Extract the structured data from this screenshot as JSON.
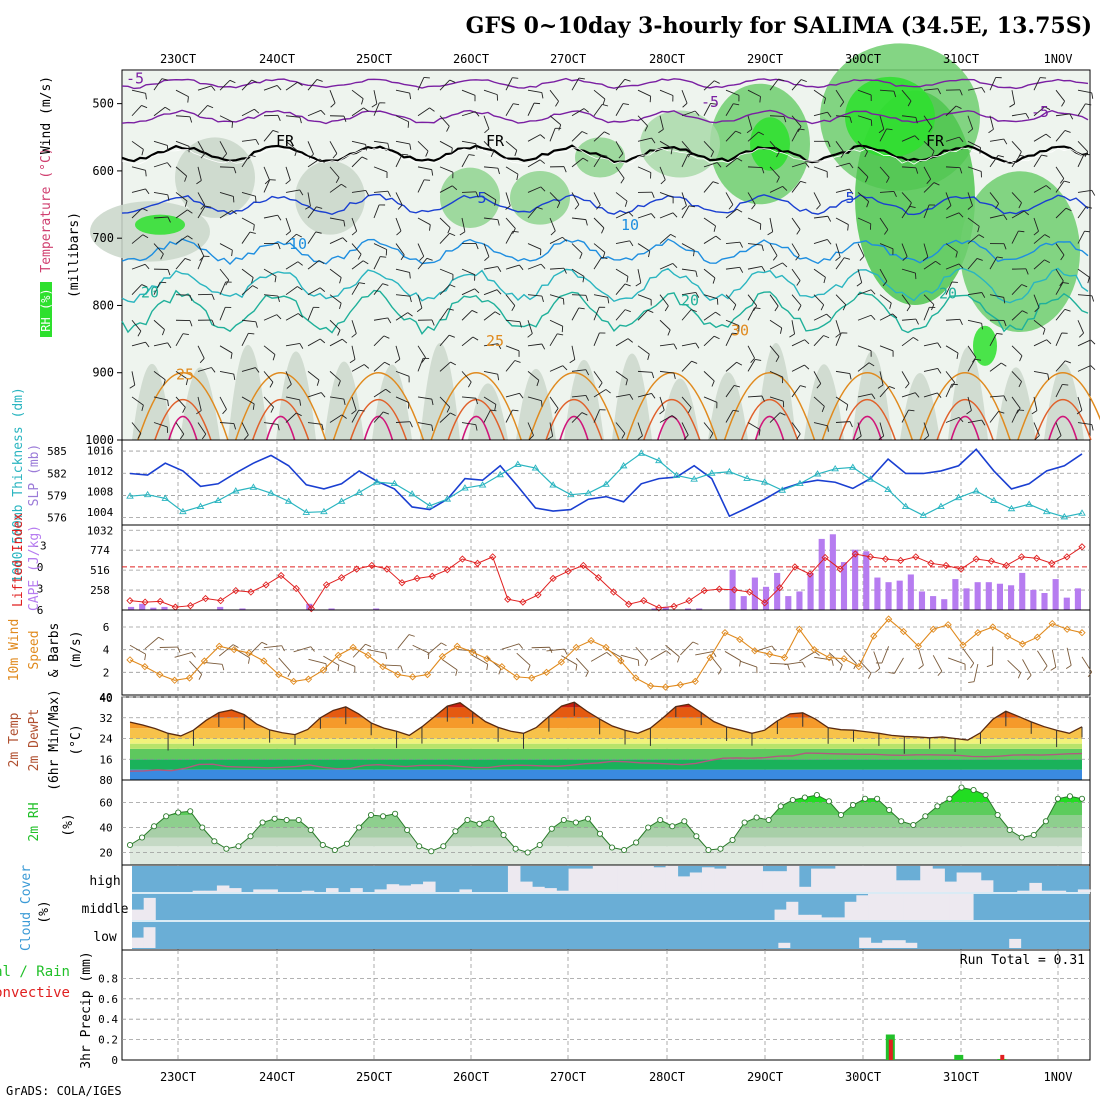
{
  "header": {
    "title": "GFS 0~10day 3-hourly for SALIMA (34.5E, 13.75S)",
    "credit": "GrADS: COLA/IGES"
  },
  "colors": {
    "purple": "#7a1fa2",
    "blue": "#1a3fd1",
    "cyan": "#2ab5c0",
    "orange": "#e08a1e",
    "red": "#e02020",
    "green": "#22c02a",
    "cloudBlue": "#6aaed6",
    "cape": "#b67cf0",
    "barb": "#7a5a3a"
  },
  "chart_data": [
    {
      "id": "upper-air",
      "type": "heatmap",
      "ylabel_parts": [
        "RH (%)",
        "Temperature (°C)",
        "Wind (m/s)"
      ],
      "ylabel_sub": "(millibars)",
      "y_ticks": [
        500,
        600,
        700,
        800,
        900,
        1000
      ],
      "ylim": [
        1000,
        450
      ],
      "x_ticks": [
        "23OCT",
        "24OCT",
        "25OCT",
        "26OCT",
        "27OCT",
        "28OCT",
        "29OCT",
        "30OCT",
        "31OCT",
        "1NOV"
      ],
      "contour_labels": [
        "-5",
        "-5",
        "-5",
        "FR",
        "FR",
        "FR",
        "5",
        "5",
        "10",
        "10",
        "20",
        "20",
        "20",
        "25",
        "25",
        "30"
      ]
    },
    {
      "id": "slp-thickness",
      "type": "line",
      "ylabel_left": "1000-500mb Thickness (dm)",
      "ylabel_right": "SLP (mb)",
      "left_ticks": [
        576,
        579,
        582,
        585
      ],
      "right_ticks": [
        1004,
        1008,
        1012,
        1016
      ],
      "series": [
        {
          "name": "SLP (mb)",
          "values": [
            1011.5,
            1011.2,
            1013.5,
            1012,
            1009,
            1009.5,
            1011.6,
            1013.5,
            1015,
            1013,
            1009.3,
            1008.5,
            1009.5,
            1012,
            1010,
            1008.5,
            1005,
            1004.5,
            1006.5,
            1010.5,
            1010.2,
            1013,
            1009,
            1004.8,
            1004.2,
            1004.5,
            1006.5,
            1007,
            1006,
            1009.5,
            1010.5,
            1010.8,
            1013,
            1010.5,
            1003.2,
            1004.8,
            1006.5,
            1008.5,
            1009.6,
            1010.2,
            1009.8,
            1008.6,
            1010.5,
            1014.3,
            1011.5,
            1011.5,
            1012,
            1013,
            1016.2,
            1012,
            1008.5,
            1009.5,
            1012,
            1013,
            1015.3
          ]
        },
        {
          "name": "Thickness (dm)",
          "values": [
            578.9,
            579.1,
            578.6,
            576.8,
            577.5,
            578.3,
            579.6,
            580.1,
            579.3,
            578.2,
            576.7,
            576.8,
            578.2,
            579.4,
            580.8,
            580.6,
            579.2,
            577.6,
            578.5,
            580,
            580.4,
            581.8,
            583.2,
            582.7,
            580.4,
            579.1,
            579.3,
            580.5,
            583,
            584.7,
            583.7,
            581.7,
            581.2,
            582,
            582.2,
            581.3,
            580.8,
            579.7,
            580.6,
            581.9,
            582.6,
            582.8,
            581.2,
            579.8,
            577.5,
            576.3,
            577.5,
            578.7,
            579.6,
            578.3,
            577.2,
            577.8,
            576.8,
            576.1,
            576.6
          ]
        }
      ]
    },
    {
      "id": "cape-li",
      "type": "bar",
      "ylabel_left": "Lifted Index",
      "ylabel_right": "CAPE (J/kg)",
      "left_ticks": [
        "-3",
        "0",
        "3",
        "6"
      ],
      "right_ticks": [
        258,
        516,
        774,
        1032
      ],
      "series": [
        {
          "name": "Lifted Index",
          "values": [
            4.7,
            4.9,
            4.8,
            5.6,
            5.4,
            4.4,
            4.7,
            3.3,
            3.5,
            2.5,
            1.2,
            3,
            5.8,
            2.5,
            1.5,
            0.3,
            -0.2,
            0.3,
            2.2,
            1.6,
            1.3,
            0.4,
            -1.1,
            -0.5,
            -1.4,
            4.5,
            4.9,
            3.9,
            1.6,
            0.6,
            -0.2,
            1.5,
            3.5,
            5.2,
            4.7,
            5.7,
            5.5,
            4.7,
            3.3,
            3.1,
            3.2,
            3.5,
            5,
            2.9,
            0,
            1,
            -1.3,
            0.3,
            -1.8,
            -1.4,
            -1.1,
            -0.9,
            -1.4,
            -0.5,
            -0.2,
            0.3,
            -1.1,
            -0.8,
            -0.2,
            -1.4,
            -1.2,
            -0.5,
            -1.4,
            -2.8
          ]
        },
        {
          "name": "CAPE (J/kg)",
          "values": [
            40,
            80,
            30,
            40,
            0,
            0,
            0,
            0,
            40,
            0,
            20,
            0,
            0,
            0,
            0,
            0,
            80,
            0,
            20,
            0,
            0,
            0,
            20,
            0,
            0,
            0,
            0,
            0,
            0,
            0,
            0,
            0,
            0,
            0,
            0,
            0,
            0,
            0,
            0,
            0,
            0,
            0,
            0,
            0,
            0,
            0,
            0,
            20,
            40,
            0,
            20,
            20,
            0,
            0,
            520,
            180,
            420,
            300,
            480,
            180,
            240,
            480,
            920,
            980,
            620,
            780,
            760,
            420,
            360,
            380,
            460,
            240,
            180,
            140,
            400,
            280,
            360,
            360,
            340,
            320,
            480,
            260,
            220,
            400,
            160,
            280
          ]
        }
      ]
    },
    {
      "id": "wind10m",
      "type": "line",
      "ylabel_parts": [
        "10m Wind",
        "Speed",
        "& Barbs",
        "(m/s)"
      ],
      "y_ticks": [
        2,
        4,
        6
      ],
      "ylim": [
        0,
        7.5
      ],
      "series": [
        {
          "name": "10m Wind Speed",
          "values": [
            3.1,
            2.5,
            1.8,
            1.3,
            1.5,
            3,
            4.3,
            4,
            3.7,
            3,
            1.8,
            1.2,
            1.4,
            2.2,
            3.5,
            4.2,
            3.5,
            2.5,
            1.8,
            1.6,
            1.8,
            3.4,
            4.3,
            3.8,
            3.2,
            2.5,
            1.6,
            1.5,
            2,
            2.9,
            4.2,
            4.8,
            4.2,
            3,
            1.5,
            0.8,
            0.7,
            0.9,
            1.2,
            3.3,
            5.5,
            4.9,
            3.9,
            3.6,
            3.3,
            5.8,
            4,
            3.3,
            3.2,
            2.5,
            5.2,
            6.7,
            5.6,
            4.3,
            5.8,
            6.2,
            4.4,
            5.5,
            6,
            5.2,
            4.5,
            5.1,
            6.3,
            5.8,
            5.5
          ]
        }
      ]
    },
    {
      "id": "temp-dewpt",
      "type": "area",
      "ylabel_parts": [
        "2m Temp",
        "2m DewPt",
        "(6hr Min/Max)",
        "(°C)"
      ],
      "y_ticks": [
        16,
        24,
        32,
        40
      ],
      "ylim": [
        8,
        40
      ],
      "series": [
        {
          "name": "2m Temp",
          "values": [
            30.3,
            29.2,
            27.8,
            26,
            25,
            27.2,
            31,
            34,
            35,
            33.2,
            29.5,
            27.3,
            26.2,
            25.5,
            27.5,
            32,
            34.8,
            36.2,
            33.5,
            30,
            28,
            26.8,
            25.2,
            28.5,
            32.5,
            36.5,
            37.8,
            34.2,
            30.5,
            28.3,
            26.8,
            26,
            28.2,
            32.5,
            36.5,
            38,
            34.5,
            31.5,
            28.8,
            27.2,
            26,
            28,
            32,
            36.3,
            37.2,
            34,
            30.5,
            28.5,
            27.3,
            26,
            27.2,
            30.8,
            33.5,
            33.9,
            31.5,
            28.2,
            27.4,
            27.2,
            26.6,
            26,
            25.2,
            24.8,
            24.6,
            24.3,
            24.6,
            24,
            23.4,
            26.2,
            31.5,
            34.5,
            32.5,
            30.4,
            28.6,
            27.2,
            26,
            28.5
          ]
        },
        {
          "name": "2m DewPt",
          "values": [
            11.4,
            11.5,
            11.9,
            11.6,
            12.5,
            14,
            14.1,
            13.2,
            13,
            12.9,
            12.7,
            12.9,
            13.2,
            13.8,
            12.9,
            12.3,
            12.5,
            13.6,
            13.9,
            13.5,
            13.2,
            13.6,
            13.6,
            13.6,
            13.2,
            12.8,
            12.8,
            13.5,
            13.7,
            13.6,
            13.4,
            13.3,
            13.7,
            14.3,
            14.6,
            15.2,
            15,
            14.6,
            14.5,
            14.2,
            13.9,
            14.4,
            15.5,
            16.4,
            16.5,
            16.4,
            16.6,
            17.2,
            17.3,
            18.4,
            18.3,
            18.1,
            18,
            17.9,
            17.9,
            17.6,
            17.5,
            17.7,
            17.7,
            17.6,
            17.5,
            17.1,
            17,
            17.2,
            17.6,
            17.7,
            17.6,
            17.8,
            18.1,
            18.2
          ]
        }
      ]
    },
    {
      "id": "rh2m",
      "type": "area",
      "ylabel_parts": [
        "2m RH",
        "(%)"
      ],
      "y_ticks": [
        20,
        40,
        60
      ],
      "ylim": [
        10,
        78
      ],
      "series": [
        {
          "name": "2m RH",
          "values": [
            26,
            32,
            41,
            49,
            52,
            53,
            40,
            29,
            23,
            25,
            33,
            44,
            47,
            46,
            46,
            38,
            26,
            22,
            27,
            40,
            50,
            49,
            51,
            38,
            25,
            21,
            25,
            37,
            46,
            43,
            47,
            34,
            23,
            20,
            26,
            39,
            46,
            44,
            47,
            35,
            24,
            22,
            28,
            40,
            46,
            41,
            45,
            33,
            22,
            23,
            30,
            44,
            48,
            46,
            57,
            62,
            64,
            66,
            61,
            50,
            58,
            63,
            63,
            54,
            45,
            42,
            49,
            57,
            63,
            72,
            70,
            66,
            50,
            38,
            32,
            34,
            45,
            63,
            65,
            63
          ]
        }
      ]
    },
    {
      "id": "cloud-cover",
      "type": "bar",
      "ylabel_parts": [
        "Cloud Cover",
        "(%)"
      ],
      "levels": [
        "high",
        "middle",
        "low"
      ],
      "series": [
        {
          "name": "high",
          "values": [
            0,
            0,
            0,
            0,
            0,
            5,
            5,
            25,
            15,
            0,
            10,
            10,
            0,
            0,
            5,
            0,
            15,
            0,
            15,
            0,
            10,
            30,
            25,
            30,
            40,
            0,
            0,
            10,
            0,
            0,
            0,
            100,
            40,
            20,
            15,
            5,
            90,
            90,
            100,
            100,
            100,
            100,
            100,
            95,
            100,
            60,
            75,
            95,
            90,
            100,
            100,
            100,
            80,
            80,
            100,
            20,
            90,
            90,
            100,
            100,
            100,
            100,
            100,
            45,
            45,
            100,
            90,
            40,
            75,
            75,
            45,
            0,
            0,
            5,
            35,
            5,
            5,
            0,
            10
          ]
        },
        {
          "name": "middle",
          "values": [
            40,
            85,
            0,
            0,
            0,
            0,
            0,
            0,
            0,
            0,
            0,
            0,
            0,
            0,
            0,
            0,
            0,
            0,
            0,
            0,
            0,
            0,
            0,
            0,
            0,
            0,
            0,
            0,
            0,
            0,
            0,
            0,
            0,
            0,
            0,
            0,
            0,
            0,
            0,
            0,
            0,
            0,
            0,
            0,
            0,
            0,
            0,
            0,
            0,
            0,
            0,
            0,
            0,
            0,
            0,
            40,
            70,
            20,
            20,
            10,
            10,
            70,
            95,
            100,
            100,
            100,
            100,
            100,
            100,
            100,
            100,
            100,
            0,
            0,
            0,
            0,
            0,
            0,
            0,
            0,
            0,
            0
          ]
        },
        {
          "name": "low",
          "values": [
            40,
            80,
            0,
            0,
            0,
            0,
            0,
            0,
            0,
            0,
            0,
            0,
            0,
            0,
            0,
            0,
            0,
            0,
            0,
            0,
            0,
            0,
            0,
            0,
            0,
            0,
            0,
            0,
            0,
            0,
            0,
            0,
            0,
            0,
            0,
            0,
            0,
            0,
            0,
            0,
            0,
            0,
            0,
            0,
            0,
            0,
            0,
            0,
            0,
            0,
            0,
            0,
            0,
            0,
            0,
            0,
            20,
            0,
            0,
            0,
            0,
            0,
            0,
            40,
            20,
            30,
            30,
            20,
            0,
            0,
            0,
            0,
            0,
            0,
            0,
            0,
            35,
            0,
            0,
            0,
            0,
            0,
            0
          ]
        }
      ]
    },
    {
      "id": "precip",
      "type": "bar",
      "ylabel_left": "Total / Rain",
      "ylabel_left2": "Convective",
      "ylabel": "3hr Precip (mm)",
      "y_ticks": [
        "0",
        "0.2",
        "0.4",
        "0.6",
        "0.8"
      ],
      "ylim": [
        0,
        1
      ],
      "annotation": "Run Total = 0.31",
      "x_ticks": [
        "23OCT",
        "24OCT",
        "25OCT",
        "26OCT",
        "27OCT",
        "28OCT",
        "29OCT",
        "30OCT",
        "31OCT",
        "1NOV"
      ],
      "series": [
        {
          "name": "Total / Rain",
          "values": [
            0.25,
            0.05,
            0.01
          ]
        },
        {
          "name": "Convective",
          "values": [
            0.2,
            0,
            0.05
          ]
        },
        {
          "name": "times",
          "values": [
            7.78,
            8.48,
            8.92
          ]
        }
      ]
    }
  ]
}
